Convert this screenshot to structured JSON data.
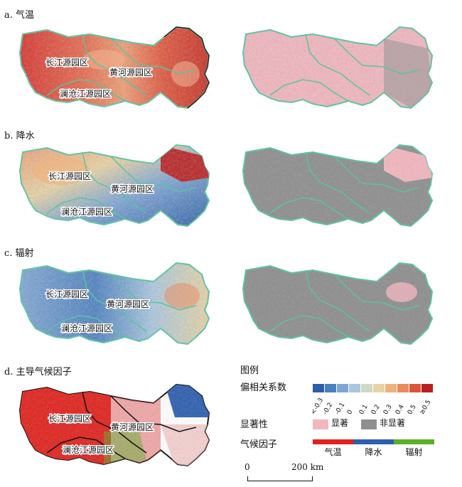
{
  "panels": [
    {
      "id": "a",
      "title": "a. 气温"
    },
    {
      "id": "b",
      "title": "b. 降水"
    },
    {
      "id": "c",
      "title": "c. 辐射"
    },
    {
      "id": "d",
      "title": "d. 主导气候因子"
    }
  ],
  "regions": {
    "changjiang": "长江源园区",
    "huanghe": "黄河源园区",
    "lancang": "澜沧江源园区"
  },
  "legend": {
    "title": "图例",
    "corr_label": "偏相关系数",
    "corr_ticks": [
      "<-0.3",
      "-0.2",
      "-0.1",
      "0",
      "0.1",
      "0.2",
      "0.3",
      "0.4",
      "0.5",
      "≥0.5"
    ],
    "corr_colors": [
      "#2c5ea8",
      "#4a7fc0",
      "#7ea6d4",
      "#a9c7df",
      "#cfd9c6",
      "#e8d3a3",
      "#f0b27d",
      "#e98a5f",
      "#d9553b",
      "#b81f1f"
    ],
    "sig_label": "显著性",
    "sig_items": [
      {
        "label": "显著",
        "color": "#f2b6bf"
      },
      {
        "label": "非显著",
        "color": "#8f8f8f"
      }
    ],
    "factor_label": "气候因子",
    "factor_items": [
      {
        "label": "气温",
        "color": "#e0231e"
      },
      {
        "label": "降水",
        "color": "#2d5fb0"
      },
      {
        "label": "辐射",
        "color": "#5bb02a"
      }
    ],
    "scale": {
      "zero": "0",
      "dist": "200 km"
    }
  },
  "colors": {
    "boundary_green": "#5cc3a0",
    "boundary_black": "#111111",
    "sig_pink": "#f2b6bf",
    "nonsig_gray": "#8f8f8f"
  }
}
